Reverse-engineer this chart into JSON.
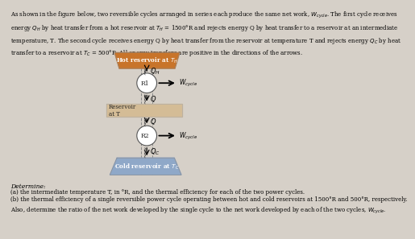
{
  "bg_color": "#d6d0c8",
  "hot_reservoir_color": "#c8742a",
  "cold_reservoir_color": "#8fa8c8",
  "intermediate_reservoir_color": "#d4bc96",
  "hot_label": "Hot reservoir at T_H",
  "intermediate_label": "Reservoir\nat T",
  "cold_label": "Cold reservoir at T_C",
  "r1_label": "R1",
  "r2_label": "R2",
  "determine_text": "Determine:",
  "part_a": "(a) the intermediate temperature T, in degrees R, and the thermal efficiency for each of the two power cycles.",
  "part_b_1": "(b) the thermal efficiency of a single reversible power cycle operating between hot and cold reservoirs at 1500 R and 500 R, respectively.",
  "part_b_2": "Also, determine the ratio of the net work developed by the single cycle to the net work developed by each of the two cycles, W_cycle."
}
